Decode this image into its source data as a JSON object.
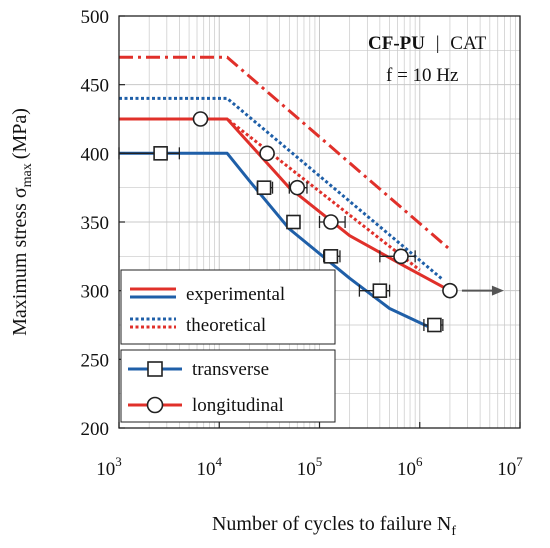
{
  "chart_data": {
    "type": "line",
    "title": "",
    "xlabel": "Number of cycles to failure N",
    "xlabel_subscript": "f",
    "ylabel": "Maximum stress σ",
    "ylabel_subscript": "max",
    "ylabel_unit": "(MPa)",
    "x_scale": "log",
    "xlim": [
      1000,
      10000000
    ],
    "ylim": [
      200,
      500
    ],
    "grid": true,
    "x_ticks": [
      {
        "value": 1000,
        "base": "10",
        "exp": "3"
      },
      {
        "value": 10000,
        "base": "10",
        "exp": "4"
      },
      {
        "value": 100000,
        "base": "10",
        "exp": "5"
      },
      {
        "value": 1000000,
        "base": "10",
        "exp": "6"
      },
      {
        "value": 10000000,
        "base": "10",
        "exp": "7"
      }
    ],
    "y_ticks": [
      "200",
      "250",
      "300",
      "350",
      "400",
      "450",
      "500"
    ],
    "annotation": {
      "material_bold": "CF-PU",
      "separator": "|",
      "method": "CAT",
      "frequency": "f = 10 Hz"
    },
    "colors": {
      "transverse": "#1f5fa8",
      "longitudinal": "#e0302a",
      "grid": "#c8c8c8",
      "arrow": "#555555"
    },
    "legend_placement": "bottom-left",
    "legend_line_types": [
      {
        "label": "experimental",
        "style": "solid"
      },
      {
        "label": "theoretical",
        "style": "dotted"
      }
    ],
    "legend_orientations": [
      {
        "label": "transverse",
        "marker": "square",
        "color": "#1f5fa8"
      },
      {
        "label": "longitudinal",
        "marker": "circle",
        "color": "#e0302a"
      }
    ],
    "series": [
      {
        "orientation": "transverse",
        "kind": "experimental",
        "color": "#1f5fa8",
        "dash": "none",
        "x": [
          1000,
          12000,
          20000,
          50000,
          200000,
          500000,
          1200000
        ],
        "y": [
          400,
          400,
          380,
          345,
          309,
          287,
          274
        ]
      },
      {
        "orientation": "transverse",
        "kind": "theoretical",
        "color": "#1f5fa8",
        "dash": "dotted",
        "x": [
          1000,
          12000,
          1700000
        ],
        "y": [
          440,
          440,
          308
        ]
      },
      {
        "orientation": "longitudinal",
        "kind": "experimental",
        "color": "#e0302a",
        "dash": "none",
        "x": [
          1000,
          12000,
          50000,
          200000,
          700000,
          2000000
        ],
        "y": [
          425,
          425,
          375,
          340,
          318,
          300
        ]
      },
      {
        "orientation": "longitudinal",
        "kind": "theoretical",
        "color": "#e0302a",
        "dash": "dotted",
        "x": [
          1000,
          12000,
          1000000
        ],
        "y": [
          425,
          425,
          315
        ]
      },
      {
        "orientation": "longitudinal",
        "kind": "upper bound",
        "color": "#e0302a",
        "dash": "dashdot",
        "x": [
          1000,
          12000,
          2000000
        ],
        "y": [
          470,
          470,
          330
        ]
      }
    ],
    "points": [
      {
        "orientation": "transverse",
        "marker": "square",
        "x": 2600,
        "y": 400,
        "xerr": [
          1000,
          4000
        ]
      },
      {
        "orientation": "transverse",
        "marker": "square",
        "x": 28000,
        "y": 375,
        "xerr": [
          24000,
          34000
        ]
      },
      {
        "orientation": "transverse",
        "marker": "square",
        "x": 55000,
        "y": 350,
        "xerr": [
          50000,
          62000
        ]
      },
      {
        "orientation": "transverse",
        "marker": "square",
        "x": 130000,
        "y": 325,
        "xerr": [
          110000,
          160000
        ]
      },
      {
        "orientation": "transverse",
        "marker": "square",
        "x": 400000,
        "y": 300,
        "xerr": [
          250000,
          500000
        ]
      },
      {
        "orientation": "transverse",
        "marker": "square",
        "x": 1400000,
        "y": 275,
        "xerr": [
          1100000,
          1700000
        ]
      },
      {
        "orientation": "longitudinal",
        "marker": "circle",
        "x": 6500,
        "y": 425,
        "xerr": null
      },
      {
        "orientation": "longitudinal",
        "marker": "circle",
        "x": 30000,
        "y": 400,
        "xerr": null
      },
      {
        "orientation": "longitudinal",
        "marker": "circle",
        "x": 60000,
        "y": 375,
        "xerr": [
          50000,
          75000
        ]
      },
      {
        "orientation": "longitudinal",
        "marker": "circle",
        "x": 130000,
        "y": 350,
        "xerr": [
          100000,
          180000
        ]
      },
      {
        "orientation": "longitudinal",
        "marker": "circle",
        "x": 650000,
        "y": 325,
        "xerr": [
          400000,
          900000
        ]
      },
      {
        "orientation": "longitudinal",
        "marker": "circle",
        "x": 2000000,
        "y": 300,
        "xerr": null,
        "runout": true
      }
    ]
  }
}
